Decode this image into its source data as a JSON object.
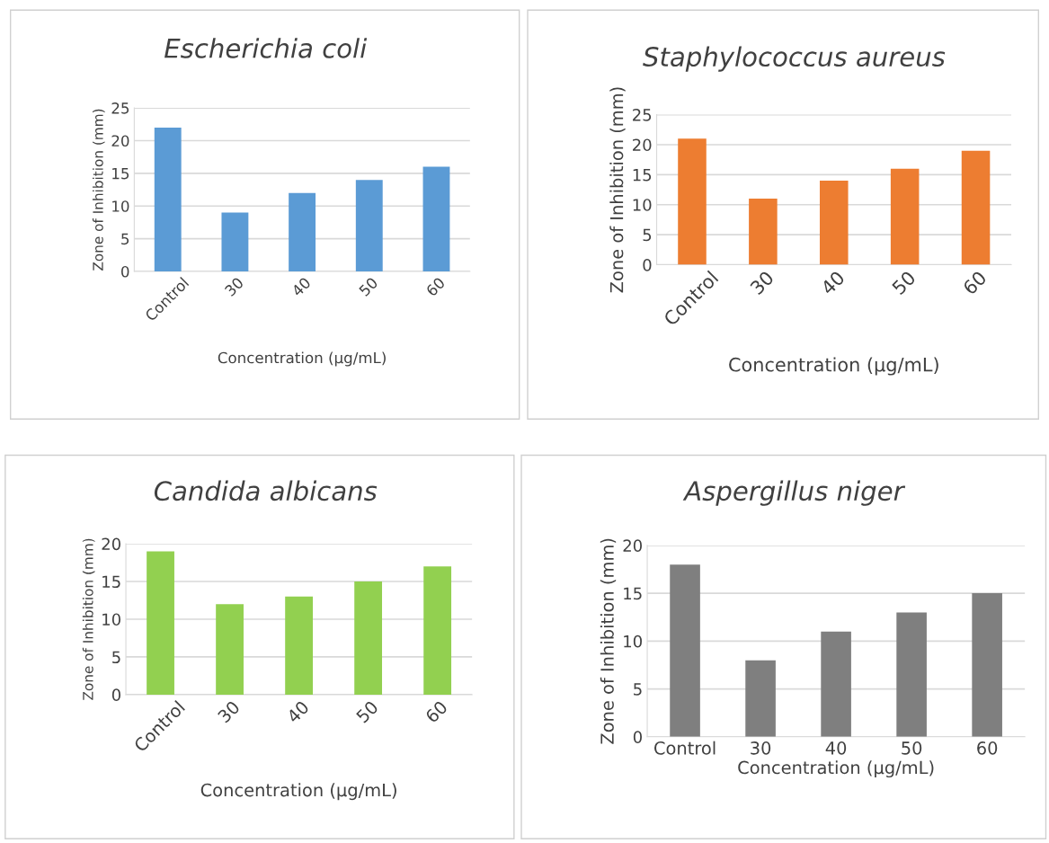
{
  "chart_data": [
    {
      "type": "bar",
      "title": "Escherichia coli",
      "xlabel": "Concentration (µg/mL)",
      "ylabel": "Zone of Inhibition (mm)",
      "categories": [
        "Control",
        "30",
        "40",
        "50",
        "60"
      ],
      "values": [
        22,
        9,
        12,
        14,
        16
      ],
      "color": "#5b9bd5",
      "ylim": [
        0,
        25
      ],
      "yticks": [
        0,
        5,
        10,
        15,
        20,
        25
      ],
      "grid": "y"
    },
    {
      "type": "bar",
      "title": "Staphylococcus aureus",
      "xlabel": "Concentration (µg/mL)",
      "ylabel": "Zone of Inhibition (mm)",
      "categories": [
        "Control",
        "30",
        "40",
        "50",
        "60"
      ],
      "values": [
        21,
        11,
        14,
        16,
        19
      ],
      "color": "#ed7d31",
      "ylim": [
        0,
        25
      ],
      "yticks": [
        0,
        5,
        10,
        15,
        20,
        25
      ],
      "grid": "y"
    },
    {
      "type": "bar",
      "title": "Candida albicans",
      "xlabel": "Concentration (µg/mL)",
      "ylabel": "Zone of Inhibition (mm)",
      "categories": [
        "Control",
        "30",
        "40",
        "50",
        "60"
      ],
      "values": [
        19,
        12,
        13,
        15,
        17
      ],
      "color": "#92d050",
      "ylim": [
        0,
        20
      ],
      "yticks": [
        0,
        5,
        10,
        15,
        20
      ],
      "grid": "y"
    },
    {
      "type": "bar",
      "title": "Aspergillus niger",
      "xlabel": "Concentration (µg/mL)",
      "ylabel": "Zone of Inhibition (mm)",
      "categories": [
        "Control",
        "30",
        "40",
        "50",
        "60"
      ],
      "values": [
        18,
        8,
        11,
        13,
        15
      ],
      "color": "#7f7f7f",
      "ylim": [
        0,
        20
      ],
      "yticks": [
        0,
        5,
        10,
        15,
        20
      ],
      "grid": "y"
    }
  ]
}
